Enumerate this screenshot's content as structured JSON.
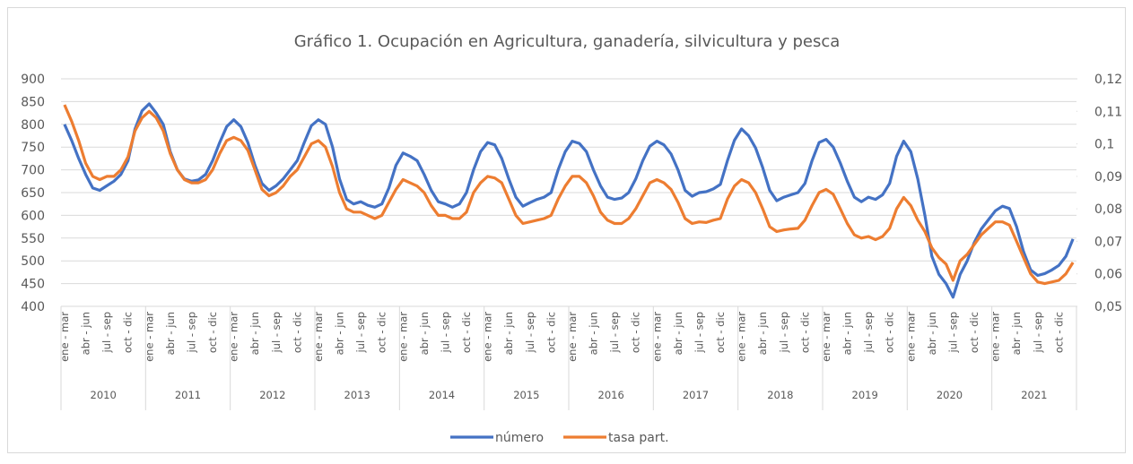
{
  "chart_data": {
    "type": "line",
    "title": "Gráfico 1. Ocupación en Agricultura, ganadería, silvicultura y pesca",
    "categories": [
      "ene - mar",
      null,
      null,
      "abr - jun",
      null,
      null,
      "jul - sep",
      null,
      null,
      "oct - dic",
      null,
      null,
      "ene - mar",
      null,
      null,
      "abr - jun",
      null,
      null,
      "jul - sep",
      null,
      null,
      "oct - dic",
      null,
      null,
      "ene - mar",
      null,
      null,
      "abr - jun",
      null,
      null,
      "jul - sep",
      null,
      null,
      "oct - dic",
      null,
      null,
      "ene - mar",
      null,
      null,
      "abr - jun",
      null,
      null,
      "jul - sep",
      null,
      null,
      "oct - dic",
      null,
      null,
      "ene - mar",
      null,
      null,
      "abr - jun",
      null,
      null,
      "jul - sep",
      null,
      null,
      "oct - dic",
      null,
      null,
      "ene - mar",
      null,
      null,
      "abr - jun",
      null,
      null,
      "jul - sep",
      null,
      null,
      "oct - dic",
      null,
      null,
      "ene - mar",
      null,
      null,
      "abr - jun",
      null,
      null,
      "jul - sep",
      null,
      null,
      "oct - dic",
      null,
      null,
      "ene - mar",
      null,
      null,
      "abr - jun",
      null,
      null,
      "jul - sep",
      null,
      null,
      "oct - dic",
      null,
      null,
      "ene - mar",
      null,
      null,
      "abr - jun",
      null,
      null,
      "jul - sep",
      null,
      null,
      "oct - dic",
      null,
      null,
      "ene - mar",
      null,
      null,
      "abr - jun",
      null,
      null,
      "jul - sep",
      null,
      null,
      "oct - dic",
      null,
      null,
      "ene - mar",
      null,
      null,
      "abr - jun",
      null,
      null,
      "jul - sep",
      null,
      null,
      "oct - dic",
      null,
      null,
      "ene - mar",
      null,
      null,
      "abr - jun",
      null,
      null,
      "jul - sep",
      null,
      null,
      "oct - dic",
      null,
      null
    ],
    "years": [
      "2010",
      "2011",
      "2012",
      "2013",
      "2014",
      "2015",
      "2016",
      "2017",
      "2018",
      "2019",
      "2020",
      "2021"
    ],
    "series": [
      {
        "name": "número",
        "color": "#4472c4",
        "values": [
          800,
          765,
          725,
          690,
          660,
          655,
          665,
          675,
          690,
          720,
          790,
          830,
          845,
          825,
          800,
          740,
          700,
          680,
          675,
          678,
          690,
          720,
          760,
          795,
          810,
          795,
          760,
          710,
          670,
          655,
          665,
          680,
          700,
          720,
          760,
          797,
          810,
          800,
          750,
          680,
          635,
          625,
          630,
          622,
          618,
          625,
          660,
          710,
          737,
          730,
          720,
          690,
          655,
          630,
          625,
          618,
          625,
          650,
          700,
          740,
          760,
          755,
          725,
          680,
          640,
          620,
          628,
          635,
          640,
          650,
          700,
          740,
          763,
          758,
          740,
          700,
          665,
          640,
          635,
          638,
          650,
          680,
          720,
          752,
          763,
          755,
          735,
          700,
          655,
          642,
          650,
          652,
          658,
          668,
          720,
          765,
          790,
          775,
          748,
          705,
          655,
          632,
          640,
          645,
          650,
          670,
          720,
          760,
          767,
          750,
          715,
          675,
          640,
          630,
          640,
          635,
          645,
          670,
          730,
          763,
          740,
          680,
          600,
          510,
          470,
          450,
          420,
          470,
          500,
          540,
          570,
          590,
          610,
          620,
          615,
          575,
          520,
          480,
          468,
          472,
          480,
          490,
          510,
          548
        ]
      },
      {
        "name": "tasa part.",
        "color": "#ed7d31",
        "axis": "y2",
        "values": [
          0.112,
          0.107,
          0.101,
          0.094,
          0.09,
          0.089,
          0.09,
          0.09,
          0.092,
          0.096,
          0.104,
          0.108,
          0.11,
          0.108,
          0.104,
          0.097,
          0.092,
          0.089,
          0.088,
          0.088,
          0.089,
          0.092,
          0.097,
          0.101,
          0.102,
          0.101,
          0.098,
          0.092,
          0.086,
          0.084,
          0.085,
          0.087,
          0.09,
          0.092,
          0.096,
          0.1,
          0.101,
          0.099,
          0.093,
          0.085,
          0.08,
          0.079,
          0.079,
          0.078,
          0.077,
          0.078,
          0.082,
          0.086,
          0.089,
          0.088,
          0.087,
          0.085,
          0.081,
          0.078,
          0.078,
          0.077,
          0.077,
          0.079,
          0.085,
          0.088,
          0.09,
          0.0895,
          0.088,
          0.083,
          0.078,
          0.0755,
          0.076,
          0.0765,
          0.077,
          0.078,
          0.083,
          0.087,
          0.09,
          0.09,
          0.088,
          0.084,
          0.079,
          0.0765,
          0.0755,
          0.0755,
          0.077,
          0.08,
          0.084,
          0.088,
          0.089,
          0.088,
          0.086,
          0.082,
          0.077,
          0.0755,
          0.076,
          0.0758,
          0.0765,
          0.077,
          0.083,
          0.087,
          0.089,
          0.088,
          0.085,
          0.08,
          0.0745,
          0.073,
          0.0735,
          0.0738,
          0.074,
          0.0765,
          0.081,
          0.085,
          0.086,
          0.0845,
          0.08,
          0.0755,
          0.072,
          0.071,
          0.0715,
          0.0705,
          0.0715,
          0.074,
          0.08,
          0.0835,
          0.081,
          0.0765,
          0.073,
          0.068,
          0.065,
          0.063,
          0.058,
          0.064,
          0.066,
          0.069,
          0.072,
          0.074,
          0.076,
          0.076,
          0.075,
          0.07,
          0.065,
          0.06,
          0.0575,
          0.057,
          0.0575,
          0.058,
          0.06,
          0.0635
        ]
      }
    ],
    "ylim": [
      400,
      900
    ],
    "yticks": [
      400,
      450,
      500,
      550,
      600,
      650,
      700,
      750,
      800,
      850,
      900
    ],
    "y2lim": [
      0.05,
      0.12
    ],
    "y2ticks": [
      {
        "value": 0.05,
        "label": "0,05"
      },
      {
        "value": 0.06,
        "label": "0,06"
      },
      {
        "value": 0.07,
        "label": "0,07"
      },
      {
        "value": 0.08,
        "label": "0,08"
      },
      {
        "value": 0.09,
        "label": "0,09"
      },
      {
        "value": 0.1,
        "label": "0,1"
      },
      {
        "value": 0.11,
        "label": "0,11"
      },
      {
        "value": 0.12,
        "label": "0,12"
      }
    ],
    "grid": true,
    "legend": "bottom"
  }
}
